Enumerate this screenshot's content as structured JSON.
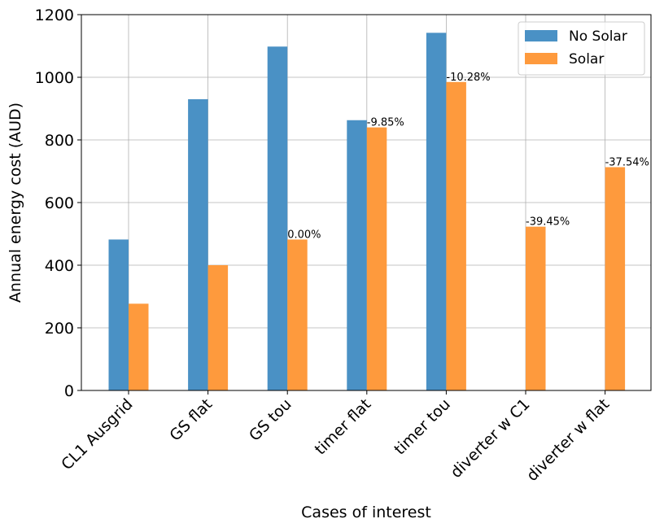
{
  "chart_data": {
    "type": "bar",
    "categories": [
      "CL1 Ausgrid",
      "GS flat",
      "GS tou",
      "timer flat",
      "timer tou",
      "diverter w C1",
      "diverter w flat"
    ],
    "series": [
      {
        "name": "No Solar",
        "color": "#4a91c5",
        "values": [
          482,
          930,
          1098,
          863,
          1142,
          null,
          null
        ]
      },
      {
        "name": "Solar",
        "color": "#fe9a3d",
        "values": [
          277,
          400,
          482,
          840,
          985,
          523,
          713
        ]
      }
    ],
    "annotations": [
      null,
      null,
      "0.00%",
      "-9.85%",
      "-10.28%",
      "-39.45%",
      "-37.54%"
    ],
    "xlabel": "Cases of interest",
    "ylabel": "Annual energy cost (AUD)",
    "ylim": [
      0,
      1200
    ],
    "yticks": [
      0,
      200,
      400,
      600,
      800,
      1000,
      1200
    ],
    "grid": true,
    "legend": "upper right"
  }
}
